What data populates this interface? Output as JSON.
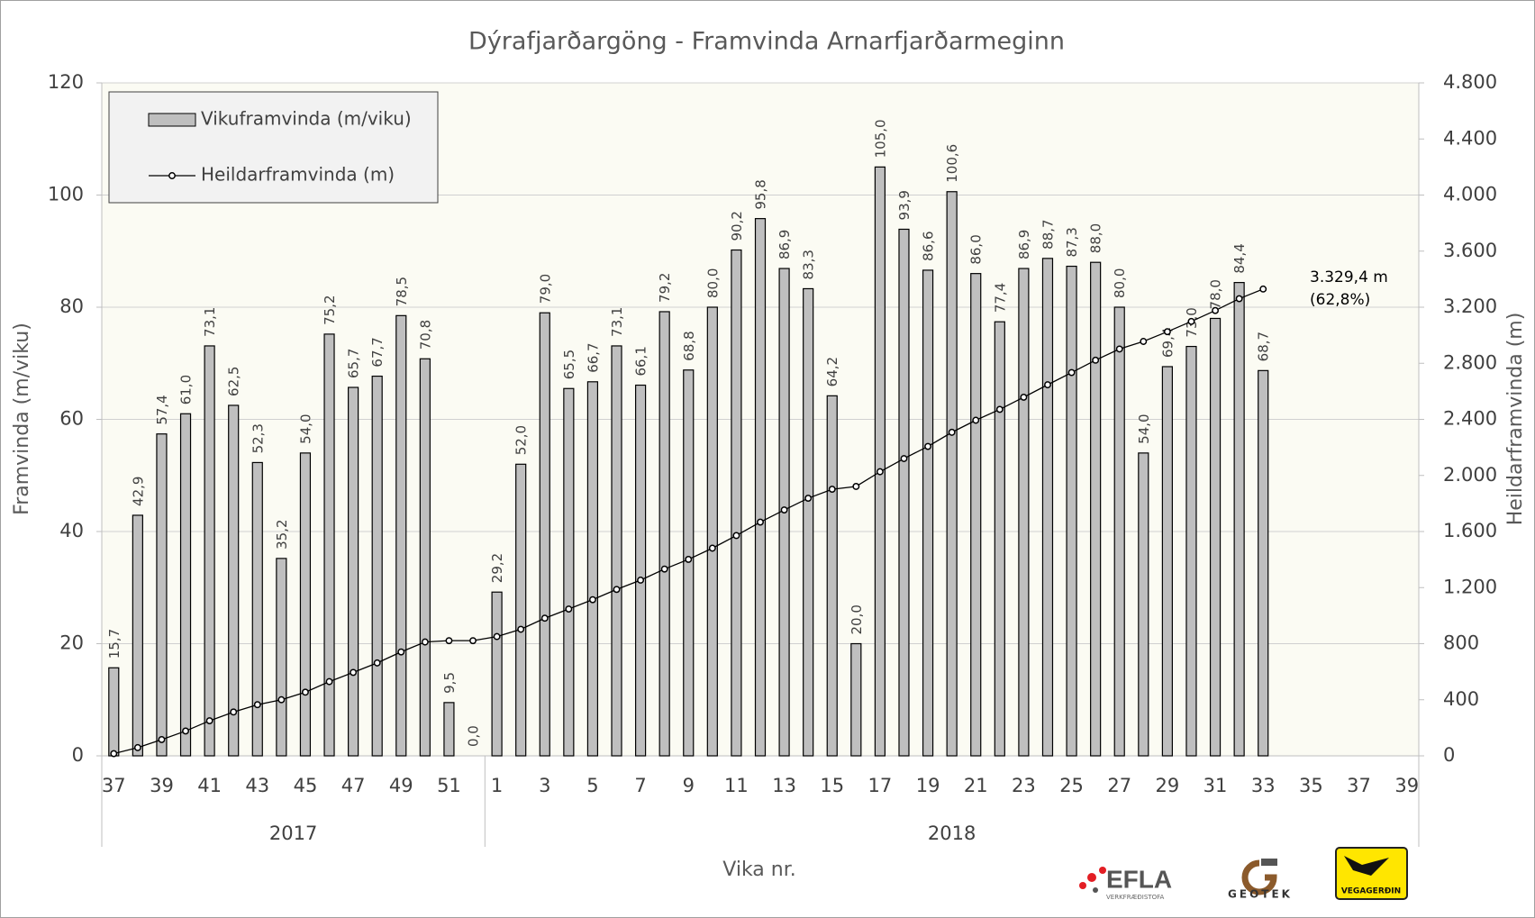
{
  "chart_data": {
    "type": "bar",
    "title": "Dýrafjarðargöng - Framvinda Arnarfjarðarmeginn",
    "xlabel": "Vika nr.",
    "ylabel": "Framvinda (m/viku)",
    "y2label": "Heildarframvinda (m)",
    "groups": [
      {
        "name": "2017",
        "categories": [
          37,
          null,
          39,
          null,
          41,
          null,
          43,
          null,
          45,
          null,
          47,
          null,
          49,
          null,
          51,
          null
        ]
      },
      {
        "name": "2018",
        "categories": [
          1,
          null,
          3,
          null,
          5,
          null,
          7,
          null,
          9,
          null,
          11,
          null,
          13,
          null,
          15,
          null,
          17,
          null,
          19,
          null,
          21,
          null,
          23,
          null,
          25,
          null,
          27,
          null,
          29,
          null,
          31,
          null,
          33,
          null,
          35,
          null,
          37,
          null,
          39
        ]
      }
    ],
    "series": [
      {
        "name": "Vikuframvinda (m/viku)",
        "type": "bar",
        "color": "#bfbfbf",
        "values": [
          15.7,
          42.9,
          57.4,
          61.0,
          73.1,
          62.5,
          52.3,
          35.2,
          54.0,
          75.2,
          65.7,
          67.7,
          78.5,
          70.8,
          9.5,
          0.0,
          29.2,
          52.0,
          79.0,
          65.5,
          66.7,
          73.1,
          66.1,
          79.2,
          68.8,
          80.0,
          90.2,
          95.8,
          86.9,
          83.3,
          64.2,
          20.0,
          105.0,
          93.9,
          86.6,
          100.6,
          86.0,
          77.4,
          86.9,
          88.7,
          87.3,
          88.0,
          80.0,
          54.0,
          69.4,
          73.0,
          78.0,
          84.4,
          68.7,
          null,
          null,
          null,
          null,
          null,
          null
        ],
        "value_labels": [
          "15,7",
          "42,9",
          "57,4",
          "61,0",
          "73,1",
          "62,5",
          "52,3",
          "35,2",
          "54,0",
          "75,2",
          "65,7",
          "67,7",
          "78,5",
          "70,8",
          "9,5",
          "0,0",
          "29,2",
          "52,0",
          "79,0",
          "65,5",
          "66,7",
          "73,1",
          "66,1",
          "79,2",
          "68,8",
          "80,0",
          "90,2",
          "95,8",
          "86,9",
          "83,3",
          "64,2",
          "20,0",
          "105,0",
          "93,9",
          "86,6",
          "100,6",
          "86,0",
          "77,4",
          "86,9",
          "88,7",
          "87,3",
          "88,0",
          "80,0",
          "54,0",
          "69,4",
          "73,0",
          "78,0",
          "84,4",
          "68,7",
          null,
          null,
          null,
          null,
          null,
          null
        ]
      },
      {
        "name": "Heildarframvinda (m)",
        "type": "line",
        "axis": "y2",
        "color": "#000000",
        "values": [
          15.7,
          58.6,
          116.0,
          177.0,
          250.1,
          312.6,
          364.9,
          400.1,
          454.1,
          529.3,
          595.0,
          662.7,
          741.2,
          812.0,
          821.5,
          821.5,
          850.7,
          902.7,
          981.7,
          1047.2,
          1113.9,
          1187.0,
          1253.1,
          1332.3,
          1401.1,
          1481.1,
          1571.3,
          1667.1,
          1754.0,
          1837.3,
          1901.5,
          1921.5,
          2026.5,
          2120.4,
          2207.0,
          2307.6,
          2393.6,
          2471.0,
          2557.9,
          2646.6,
          2733.9,
          2821.9,
          2901.9,
          2955.9,
          3025.3,
          3098.3,
          3176.3,
          3260.7,
          3329.4,
          null,
          null,
          null,
          null,
          null,
          null
        ]
      }
    ],
    "ylim": [
      0,
      120
    ],
    "yticks": [
      0,
      20,
      40,
      60,
      80,
      100,
      120
    ],
    "y2lim": [
      0,
      4800
    ],
    "y2ticks": [
      0,
      400,
      800,
      {
        "value": 1200,
        "label": "1.200"
      },
      {
        "value": 1600,
        "label": "1.600"
      },
      {
        "value": 2000,
        "label": "2.000"
      },
      {
        "value": 2400,
        "label": "2.400"
      },
      {
        "value": 2800,
        "label": "2.800"
      },
      {
        "value": 3200,
        "label": "3.200"
      },
      {
        "value": 3600,
        "label": "3.600"
      },
      {
        "value": 4000,
        "label": "4.000"
      },
      {
        "value": 4400,
        "label": "4.400"
      },
      {
        "value": 4800,
        "label": "4.800"
      }
    ],
    "grid": true,
    "legend": "top-left",
    "annotations": [
      "3.329,4 m",
      "(62,8%)"
    ]
  },
  "logos": {
    "efla": "EFLA",
    "efla_sub": "VERKFRÆÐISTOFA",
    "geotek": "GEOTEK",
    "vegagerdin": "VEGAGERÐIN"
  }
}
